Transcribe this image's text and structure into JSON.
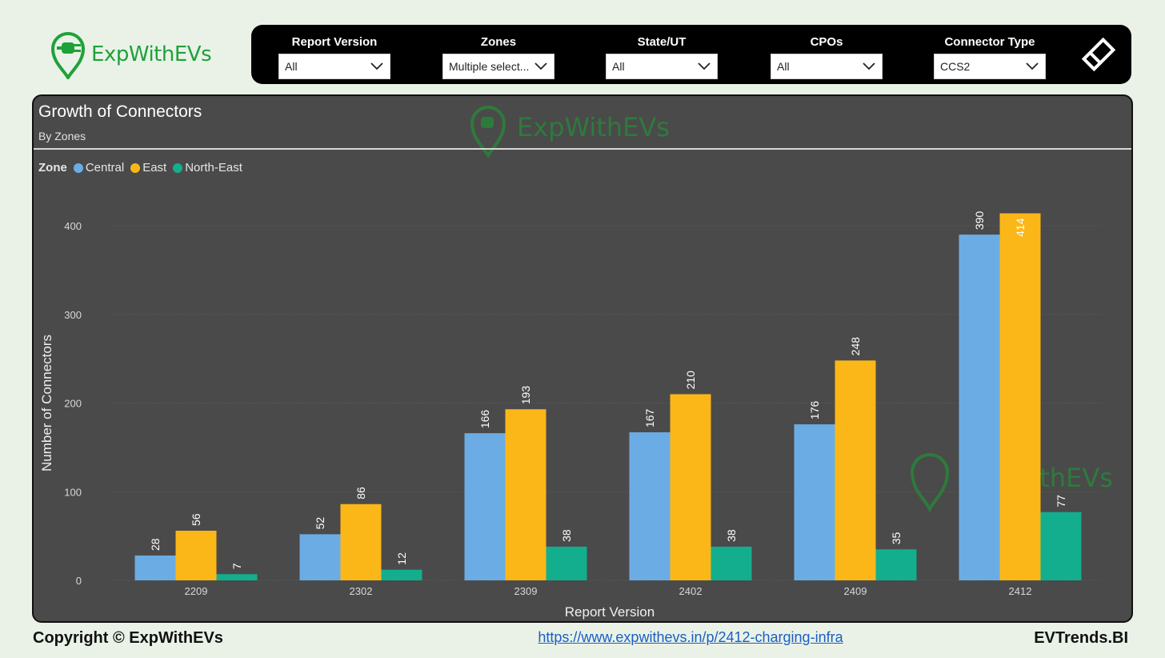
{
  "brand": {
    "logo_text": "ExpWithEVs"
  },
  "filters": [
    {
      "label": "Report Version",
      "value": "All"
    },
    {
      "label": "Zones",
      "value": "Multiple select..."
    },
    {
      "label": "State/UT",
      "value": "All"
    },
    {
      "label": "CPOs",
      "value": "All"
    },
    {
      "label": "Connector Type",
      "value": "CCS2"
    }
  ],
  "watermark_text": "ExpWithEVs",
  "colors": {
    "accent": "#1fa13a",
    "panel": "#4a4a4a"
  },
  "chart_data": {
    "type": "bar",
    "title": "Growth of Connectors",
    "subtitle": "By Zones",
    "legend_title": "Zone",
    "legend_position": "top-left",
    "xlabel": "Report Version",
    "ylabel": "Number of Connectors",
    "categories": [
      "2209",
      "2302",
      "2309",
      "2402",
      "2409",
      "2412"
    ],
    "ylim": [
      0,
      400
    ],
    "yticks": [
      0,
      100,
      200,
      300,
      400
    ],
    "grid": true,
    "series": [
      {
        "name": "Central",
        "color": "#6cace4",
        "values": [
          28,
          52,
          166,
          167,
          176,
          390
        ]
      },
      {
        "name": "East",
        "color": "#fbb718",
        "values": [
          56,
          86,
          193,
          210,
          248,
          414
        ]
      },
      {
        "name": "North-East",
        "color": "#13ae8e",
        "values": [
          7,
          12,
          38,
          38,
          35,
          77
        ]
      }
    ]
  },
  "footer": {
    "copyright": "Copyright © ExpWithEVs",
    "link": "https://www.expwithevs.in/p/2412-charging-infra",
    "brand": "EVTrends.BI"
  }
}
